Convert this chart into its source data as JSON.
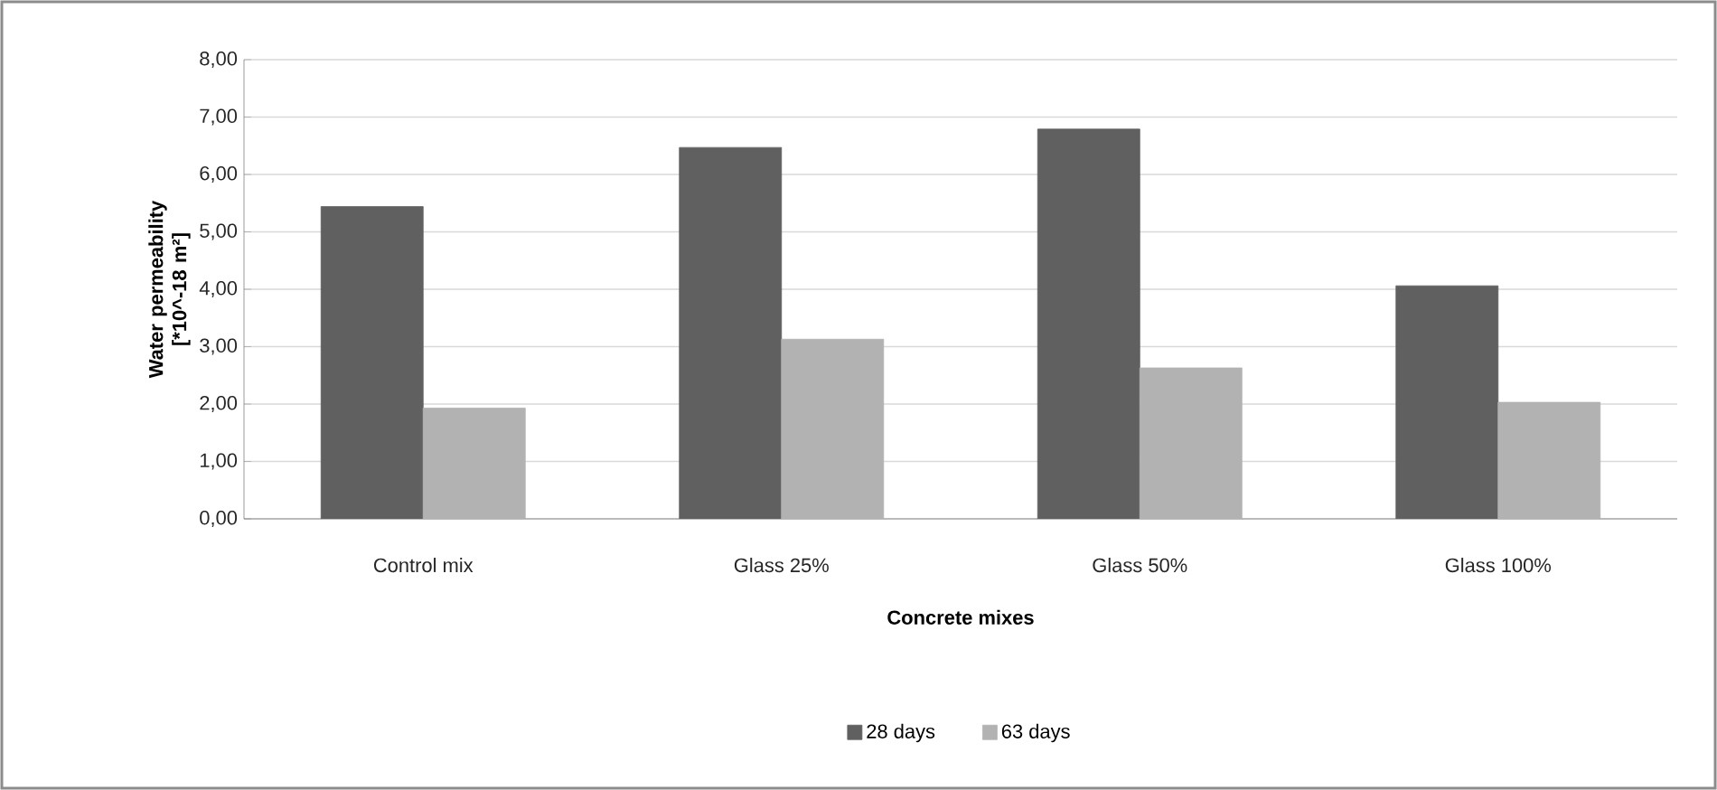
{
  "chart_data": {
    "type": "bar",
    "xlabel": "Concrete mixes",
    "ylabel": "Water permeability [*10^-18 m²]",
    "categories": [
      "Control mix",
      "Glass 25%",
      "Glass 50%",
      "Glass 100%"
    ],
    "series": [
      {
        "name": "28 days",
        "color": "#606060",
        "values": [
          5.44,
          6.47,
          6.79,
          4.06
        ]
      },
      {
        "name": "63 days",
        "color": "#b2b2b2",
        "values": [
          1.93,
          3.13,
          2.63,
          2.03
        ]
      }
    ],
    "ylim": [
      0,
      8
    ],
    "yticks": [
      {
        "value": 0,
        "label": "0,00"
      },
      {
        "value": 1,
        "label": "1,00"
      },
      {
        "value": 2,
        "label": "2,00"
      },
      {
        "value": 3,
        "label": "3,00"
      },
      {
        "value": 4,
        "label": "4,00"
      },
      {
        "value": 5,
        "label": "5,00"
      },
      {
        "value": 6,
        "label": "6,00"
      },
      {
        "value": 7,
        "label": "7,00"
      },
      {
        "value": 8,
        "label": "8,00"
      }
    ],
    "grid": "y",
    "legend": "bottom"
  }
}
